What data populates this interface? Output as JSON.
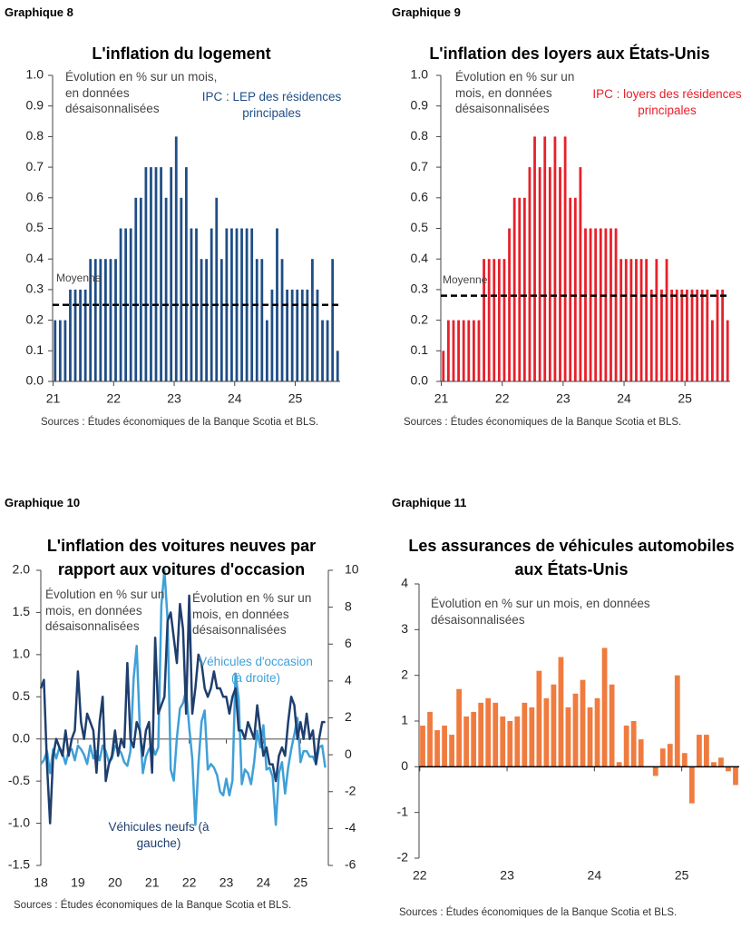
{
  "chart_data": [
    {
      "type": "bar",
      "figure_label": "Graphique 8",
      "title": "L'inflation du logement",
      "annotations": [
        "Évolution en % sur un mois, en données désaisonnalisées"
      ],
      "categories": [
        "21",
        null,
        null,
        null,
        null,
        null,
        null,
        null,
        null,
        null,
        null,
        null,
        "22",
        null,
        null,
        null,
        null,
        null,
        null,
        null,
        null,
        null,
        null,
        null,
        "23",
        null,
        null,
        null,
        null,
        null,
        null,
        null,
        null,
        null,
        null,
        null,
        "24",
        null,
        null,
        null,
        null,
        null,
        null,
        null,
        null,
        null,
        null,
        null,
        "25",
        null,
        null,
        null,
        null,
        null,
        null,
        null,
        null
      ],
      "series": [
        {
          "name": "IPC : LEP des résidences principales",
          "color": "#1f4e86",
          "values": [
            0.2,
            0.2,
            0.2,
            0.3,
            0.3,
            0.3,
            0.3,
            0.4,
            0.4,
            0.4,
            0.4,
            0.4,
            0.4,
            0.5,
            0.5,
            0.5,
            0.6,
            0.6,
            0.7,
            0.7,
            0.7,
            0.7,
            0.6,
            0.7,
            0.8,
            0.6,
            0.7,
            0.5,
            0.5,
            0.4,
            0.4,
            0.5,
            0.6,
            0.4,
            0.5,
            0.5,
            0.5,
            0.5,
            0.5,
            0.5,
            0.4,
            0.4,
            0.2,
            0.3,
            0.5,
            0.4,
            0.3,
            0.3,
            0.3,
            0.3,
            0.3,
            0.4,
            0.3,
            0.2,
            0.2,
            0.4,
            0.1
          ]
        }
      ],
      "mean": {
        "label": "Moyenne",
        "value": 0.25
      },
      "ylim": [
        0,
        1
      ],
      "yticks": [
        {
          "value": 0,
          "label": "0.0"
        },
        0.1,
        0.2,
        0.3,
        0.4,
        0.5,
        0.6,
        0.7,
        0.8,
        0.9,
        {
          "value": 1,
          "label": "1.0"
        }
      ],
      "grid": false,
      "source": "Sources : Études économiques de la Banque Scotia et BLS."
    },
    {
      "type": "bar",
      "figure_label": "Graphique 9",
      "title": "L'inflation des loyers aux États-Unis",
      "annotations": [
        "Évolution en % sur un mois, en données désaisonnalisées"
      ],
      "categories": [
        "21",
        null,
        null,
        null,
        null,
        null,
        null,
        null,
        null,
        null,
        null,
        null,
        "22",
        null,
        null,
        null,
        null,
        null,
        null,
        null,
        null,
        null,
        null,
        null,
        "23",
        null,
        null,
        null,
        null,
        null,
        null,
        null,
        null,
        null,
        null,
        null,
        "24",
        null,
        null,
        null,
        null,
        null,
        null,
        null,
        null,
        null,
        null,
        null,
        "25",
        null,
        null,
        null,
        null,
        null,
        null,
        null,
        null
      ],
      "series": [
        {
          "name": "IPC : loyers des résidences principales",
          "color": "#e8202a",
          "values": [
            0.1,
            0.2,
            0.2,
            0.2,
            0.2,
            0.2,
            0.2,
            0.2,
            0.4,
            0.4,
            0.4,
            0.4,
            0.4,
            0.5,
            0.6,
            0.6,
            0.6,
            0.7,
            0.8,
            0.7,
            0.8,
            0.7,
            0.8,
            0.7,
            0.8,
            0.6,
            0.6,
            0.7,
            0.5,
            0.5,
            0.5,
            0.5,
            0.5,
            0.5,
            0.5,
            0.4,
            0.4,
            0.4,
            0.4,
            0.4,
            0.4,
            0.3,
            0.4,
            0.3,
            0.4,
            0.3,
            0.3,
            0.3,
            0.3,
            0.3,
            0.3,
            0.3,
            0.3,
            0.2,
            0.3,
            0.3,
            0.2
          ]
        }
      ],
      "mean": {
        "label": "Moyenne",
        "value": 0.28
      },
      "ylim": [
        0,
        1
      ],
      "yticks": [
        {
          "value": 0,
          "label": "0.0"
        },
        0.1,
        0.2,
        0.3,
        0.4,
        0.5,
        0.6,
        0.7,
        0.8,
        0.9,
        {
          "value": 1,
          "label": "1.0"
        }
      ],
      "grid": false,
      "source": "Sources : Études économiques de la Banque Scotia et BLS."
    },
    {
      "type": "line",
      "figure_label": "Graphique 10",
      "title": "L'inflation des voitures neuves par rapport aux voitures d'occasion",
      "annotations": [
        "Évolution en % sur un mois, en données désaisonnalisées",
        "Évolution en % sur un mois, en données désaisonnalisées"
      ],
      "categories": [
        "18",
        null,
        null,
        null,
        null,
        null,
        null,
        null,
        null,
        null,
        null,
        null,
        "19",
        null,
        null,
        null,
        null,
        null,
        null,
        null,
        null,
        null,
        null,
        null,
        "20",
        null,
        null,
        null,
        null,
        null,
        null,
        null,
        null,
        null,
        null,
        null,
        "21",
        null,
        null,
        null,
        null,
        null,
        null,
        null,
        null,
        null,
        null,
        null,
        "22",
        null,
        null,
        null,
        null,
        null,
        null,
        null,
        null,
        null,
        null,
        null,
        "23",
        null,
        null,
        null,
        null,
        null,
        null,
        null,
        null,
        null,
        null,
        null,
        "24",
        null,
        null,
        null,
        null,
        null,
        null,
        null,
        null,
        null,
        null,
        null,
        "25",
        null,
        null,
        null,
        null,
        null,
        null,
        null,
        null
      ],
      "series": [
        {
          "name": "Véhicules neufs (à gauche)",
          "color": "#1f3e6e",
          "axis": "y",
          "values": [
            0.6,
            0.7,
            -0.3,
            -1.0,
            -0.2,
            0.0,
            -0.1,
            -0.2,
            0.1,
            -0.2,
            0.0,
            0.1,
            0.8,
            0.2,
            0.0,
            0.3,
            0.2,
            0.1,
            -0.4,
            0.2,
            0.5,
            -0.5,
            -0.3,
            -0.2,
            0.1,
            -0.2,
            0.0,
            -0.1,
            0.9,
            0.0,
            -0.1,
            0.2,
            0.1,
            -0.2,
            0.1,
            0.2,
            -0.4,
            1.2,
            0.3,
            0.4,
            0.5,
            1.4,
            1.5,
            1.2,
            0.9,
            1.6,
            1.3,
            0.3,
            1.7,
            0.3,
            0.6,
            1.0,
            0.9,
            0.6,
            0.5,
            0.6,
            0.8,
            0.6,
            0.6,
            0.5,
            0.5,
            0.3,
            0.5,
            0.6,
            0.1,
            0.1,
            0.0,
            0.2,
            0.1,
            0.0,
            0.4,
            0.1,
            -0.2,
            -0.1,
            -0.3,
            -0.3,
            -0.5,
            -0.2,
            -0.1,
            -0.2,
            0.2,
            0.5,
            0.4,
            0.0,
            0.2,
            0.0,
            0.3,
            0.0,
            0.1,
            -0.3,
            0.0,
            0.2,
            0.2
          ]
        },
        {
          "name": "Véhicules d'occasion (à droite)",
          "color": "#3fa0d8",
          "axis": "y2",
          "values": [
            -0.5,
            -0.3,
            0.2,
            -1.0,
            0.3,
            -0.2,
            0.4,
            0.1,
            -0.5,
            0.2,
            0.3,
            -0.3,
            0.5,
            0.3,
            0.0,
            -0.5,
            0.5,
            -0.2,
            0.2,
            -0.3,
            0.5,
            0.2,
            -0.4,
            -0.2,
            0.5,
            0.3,
            0.1,
            -0.4,
            -0.6,
            0.2,
            4.1,
            5.9,
            1.5,
            -1.0,
            -0.1,
            0.3,
            0.5,
            0.0,
            0.4,
            8.1,
            10.0,
            7.3,
            -0.8,
            -1.4,
            0.9,
            2.5,
            2.8,
            3.5,
            1.5,
            -0.2,
            -3.8,
            -0.5,
            1.8,
            2.4,
            -0.8,
            -0.5,
            -0.7,
            -1.1,
            -2.0,
            -2.2,
            -1.3,
            -2.2,
            -1.4,
            4.4,
            3.0,
            -1.6,
            -0.8,
            -1.0,
            -1.6,
            -0.4,
            1.3,
            0.4,
            1.6,
            -0.8,
            -0.7,
            -1.2,
            -3.8,
            -1.0,
            -0.4,
            -2.1,
            -0.7,
            0.3,
            1.1,
            2.0,
            -0.4,
            0.2,
            0.2,
            -0.1,
            -0.1,
            -0.5,
            0.4,
            0.5,
            -0.7
          ]
        }
      ],
      "ylim": [
        -1.5,
        2
      ],
      "yticks": [
        -1.5,
        {
          "value": -1,
          "label": "-1.0"
        },
        -0.5,
        {
          "value": 0,
          "label": "0.0"
        },
        0.5,
        {
          "value": 1,
          "label": "1.0"
        },
        1.5,
        {
          "value": 2,
          "label": "2.0"
        }
      ],
      "y2lim": [
        -6,
        10
      ],
      "y2ticks": [
        -6,
        -4,
        -2,
        0,
        2,
        4,
        6,
        8,
        10
      ],
      "grid": false,
      "source": "Sources : Études économiques de la Banque Scotia et BLS."
    },
    {
      "type": "bar",
      "figure_label": "Graphique 11",
      "title": "Les assurances de véhicules automobiles aux États-Unis",
      "annotations": [
        "Évolution en % sur un mois, en données désaisonnalisées"
      ],
      "categories": [
        "22",
        null,
        null,
        null,
        null,
        null,
        null,
        null,
        null,
        null,
        null,
        null,
        "23",
        null,
        null,
        null,
        null,
        null,
        null,
        null,
        null,
        null,
        null,
        null,
        "24",
        null,
        null,
        null,
        null,
        null,
        null,
        null,
        null,
        null,
        null,
        null,
        "25",
        null,
        null,
        null,
        null,
        null,
        null,
        null
      ],
      "series": [
        {
          "color": "#f07b3f",
          "values": [
            0.9,
            1.2,
            0.8,
            0.9,
            0.7,
            1.7,
            1.1,
            1.2,
            1.4,
            1.5,
            1.4,
            1.1,
            1.0,
            1.1,
            1.4,
            1.3,
            2.1,
            1.5,
            1.8,
            2.4,
            1.3,
            1.6,
            1.9,
            1.3,
            1.5,
            2.6,
            1.8,
            0.1,
            0.9,
            1.0,
            0.6,
            0.0,
            -0.2,
            0.4,
            0.5,
            2.0,
            0.3,
            -0.8,
            0.7,
            0.7,
            0.1,
            0.2,
            -0.1,
            -0.4
          ]
        }
      ],
      "ylim": [
        -2,
        4
      ],
      "yticks": [
        -2,
        -1,
        0,
        1,
        2,
        3,
        4
      ],
      "grid": false,
      "source": "Sources : Études économiques de la Banque Scotia et BLS."
    }
  ]
}
